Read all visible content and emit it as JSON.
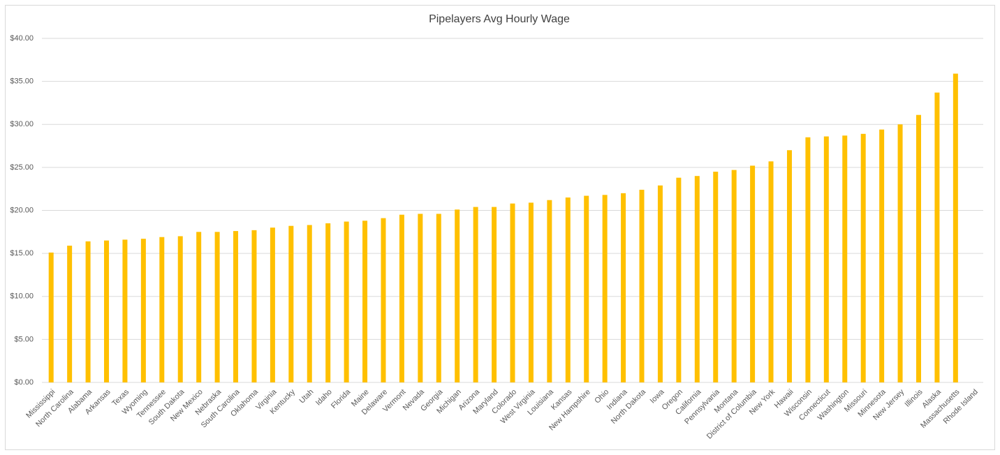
{
  "chart_data": {
    "type": "bar",
    "title": "Pipelayers Avg Hourly Wage",
    "categories": [
      "Mississippi",
      "North Carolina",
      "Alabama",
      "Arkansas",
      "Texas",
      "Wyoming",
      "Tennessee",
      "South Dakota",
      "New Mexico",
      "Nebraska",
      "South Carolina",
      "Oklahoma",
      "Virginia",
      "Kentucky",
      "Utah",
      "Idaho",
      "Florida",
      "Maine",
      "Delaware",
      "Vermont",
      "Nevada",
      "Georgia",
      "Michigan",
      "Arizona",
      "Maryland",
      "Colorado",
      "West Virginia",
      "Louisiana",
      "Kansas",
      "New Hampshire",
      "Ohio",
      "Indiana",
      "North Dakota",
      "Iowa",
      "Oregon",
      "California",
      "Pennsylvania",
      "Montana",
      "District of Columbia",
      "New York",
      "Hawaii",
      "Wisconsin",
      "Connecticut",
      "Washington",
      "Missouri",
      "Minnesota",
      "New Jersey",
      "Illinois",
      "Alaska",
      "Massachusetts",
      "Rhode Island"
    ],
    "values": [
      15.1,
      15.9,
      16.4,
      16.5,
      16.6,
      16.7,
      16.9,
      17.0,
      17.5,
      17.5,
      17.6,
      17.7,
      18.0,
      18.2,
      18.3,
      18.5,
      18.7,
      18.8,
      19.1,
      19.5,
      19.6,
      19.6,
      20.1,
      20.4,
      20.4,
      20.8,
      20.9,
      21.2,
      21.5,
      21.7,
      21.8,
      22.0,
      22.4,
      22.9,
      23.8,
      24.0,
      24.5,
      24.7,
      25.2,
      25.7,
      27.0,
      28.5,
      28.6,
      28.7,
      28.9,
      29.4,
      30.0,
      31.1,
      33.7,
      35.9,
      null
    ],
    "color": "#ffc000",
    "ylim": [
      0,
      40
    ],
    "yticks": [
      {
        "value": 0,
        "label": "$0.00"
      },
      {
        "value": 5,
        "label": "$5.00"
      },
      {
        "value": 10,
        "label": "$10.00"
      },
      {
        "value": 15,
        "label": "$15.00"
      },
      {
        "value": 20,
        "label": "$20.00"
      },
      {
        "value": 25,
        "label": "$25.00"
      },
      {
        "value": 30,
        "label": "$30.00"
      },
      {
        "value": 35,
        "label": "$35.00"
      },
      {
        "value": 40,
        "label": "$40.00"
      }
    ],
    "grid": true
  }
}
